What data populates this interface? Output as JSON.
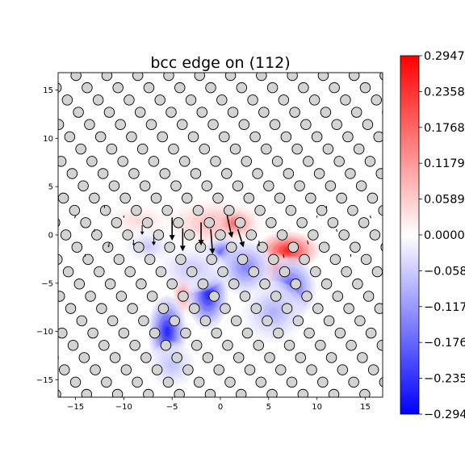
{
  "chart_data": {
    "type": "heatmap",
    "title": "bcc edge on (112)",
    "xlabel": "",
    "ylabel": "",
    "xlim": [
      -16.8,
      16.8
    ],
    "ylim": [
      -16.8,
      16.8
    ],
    "x_ticks": [
      -15,
      -10,
      -5,
      0,
      5,
      10,
      15
    ],
    "y_ticks": [
      -15,
      -10,
      -5,
      0,
      5,
      10,
      15
    ],
    "x_tick_labels": [
      "−15",
      "−10",
      "−5",
      "0",
      "5",
      "10",
      "15"
    ],
    "y_tick_labels": [
      "−15",
      "−10",
      "−5",
      "0",
      "5",
      "10",
      "15"
    ],
    "grid": false,
    "colormap": "bwr",
    "colorbar": {
      "min": -0.2947,
      "max": 0.2947,
      "ticks": [
        0.2947,
        0.2358,
        0.1768,
        0.1179,
        0.0589,
        0.0,
        -0.0589,
        -0.1179,
        -0.1768,
        -0.2358,
        -0.2947
      ],
      "tick_labels": [
        "0.2947",
        "0.2358",
        "0.1768",
        "0.1179",
        "0.0589",
        "0.0000",
        "−0.0589",
        "−0.1179",
        "−0.1768",
        "−0.2358",
        "−0.2947"
      ]
    },
    "lattice": {
      "row_spacing": 1.27,
      "col_spacing": 3.2,
      "row_shift": 1.6,
      "origin_x": 0.0,
      "origin_y": 0.0,
      "circle_diameter": 1.05,
      "circle_fill": "#d3d3d3"
    },
    "strain_blobs": [
      {
        "x": -0.5,
        "y": 1.2,
        "sx": 3.2,
        "sy": 1.5,
        "value": 0.1
      },
      {
        "x": 1.5,
        "y": 1.2,
        "sx": 1.3,
        "sy": 0.9,
        "value": 0.2
      },
      {
        "x": 7.0,
        "y": -1.6,
        "sx": 2.0,
        "sy": 1.2,
        "value": 0.29
      },
      {
        "x": 5.8,
        "y": -3.6,
        "sx": 1.0,
        "sy": 1.0,
        "value": 0.18
      },
      {
        "x": -3.8,
        "y": -5.3,
        "sx": 0.7,
        "sy": 1.8,
        "value": 0.2
      },
      {
        "x": -8.5,
        "y": 1.5,
        "sx": 2.0,
        "sy": 1.0,
        "value": 0.05
      },
      {
        "x": 0.3,
        "y": -1.9,
        "sx": 1.3,
        "sy": 1.0,
        "value": -0.22
      },
      {
        "x": -1.3,
        "y": -6.2,
        "sx": 1.3,
        "sy": 2.2,
        "value": -0.28
      },
      {
        "x": -5.5,
        "y": -10.0,
        "sx": 1.2,
        "sy": 2.3,
        "value": -0.29
      },
      {
        "x": 2.6,
        "y": -3.4,
        "sx": 1.8,
        "sy": 1.8,
        "value": -0.16
      },
      {
        "x": 7.3,
        "y": -5.5,
        "sx": 1.6,
        "sy": 2.0,
        "value": -0.22
      },
      {
        "x": 5.5,
        "y": -8.0,
        "sx": 2.0,
        "sy": 2.0,
        "value": -0.1
      },
      {
        "x": -3.0,
        "y": -3.5,
        "sx": 2.2,
        "sy": 1.5,
        "value": -0.07
      },
      {
        "x": -7.5,
        "y": -1.2,
        "sx": 1.5,
        "sy": 1.0,
        "value": -0.07
      },
      {
        "x": -5.0,
        "y": -13.5,
        "sx": 1.5,
        "sy": 1.5,
        "value": -0.08
      }
    ],
    "displacement_arrows": [
      {
        "x": -5.0,
        "y": 1.8,
        "dx": 0.0,
        "dy": -2.4
      },
      {
        "x": -3.9,
        "y": 0.7,
        "dx": 0.0,
        "dy": -2.4
      },
      {
        "x": -2.0,
        "y": 1.3,
        "dx": 0.0,
        "dy": -2.4
      },
      {
        "x": -1.0,
        "y": 0.6,
        "dx": 0.2,
        "dy": -2.6
      },
      {
        "x": 0.7,
        "y": 2.0,
        "dx": 0.5,
        "dy": -2.3
      },
      {
        "x": 1.8,
        "y": 0.6,
        "dx": 0.6,
        "dy": -1.9
      },
      {
        "x": -8.1,
        "y": 1.0,
        "dx": 0.0,
        "dy": -1.0
      },
      {
        "x": -6.9,
        "y": 0.0,
        "dx": 0.0,
        "dy": -1.1
      },
      {
        "x": -9.0,
        "y": -0.5,
        "dx": 0.0,
        "dy": -0.6
      },
      {
        "x": 4.0,
        "y": -0.6,
        "dx": 0.0,
        "dy": -0.6
      },
      {
        "x": -11.5,
        "y": -0.8,
        "dx": -0.1,
        "dy": -0.5
      },
      {
        "x": 6.5,
        "y": -2.0,
        "dx": 0.1,
        "dy": -0.4
      },
      {
        "x": 9.0,
        "y": -0.6,
        "dx": 0.1,
        "dy": -0.4
      },
      {
        "x": -15.0,
        "y": 2.0,
        "dx": -0.1,
        "dy": -0.3
      },
      {
        "x": -13.0,
        "y": 0.6,
        "dx": -0.1,
        "dy": -0.3
      },
      {
        "x": 12.0,
        "y": 0.6,
        "dx": 0.1,
        "dy": -0.3
      },
      {
        "x": 15.5,
        "y": 2.0,
        "dx": 0.1,
        "dy": -0.3
      },
      {
        "x": -14.0,
        "y": -2.0,
        "dx": 0.0,
        "dy": -0.3
      },
      {
        "x": 13.5,
        "y": -2.0,
        "dx": 0.0,
        "dy": -0.3
      },
      {
        "x": -12.0,
        "y": 3.0,
        "dx": 0.0,
        "dy": -0.25
      },
      {
        "x": 11.0,
        "y": 3.0,
        "dx": 0.0,
        "dy": -0.25
      },
      {
        "x": -10.0,
        "y": 2.0,
        "dx": 0.0,
        "dy": -0.25
      },
      {
        "x": 10.0,
        "y": 2.0,
        "dx": 0.0,
        "dy": -0.25
      }
    ]
  }
}
